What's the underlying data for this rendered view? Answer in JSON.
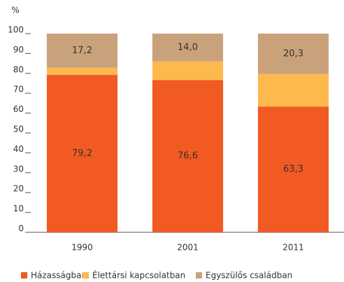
{
  "chart_data": {
    "type": "stacked_bar",
    "y_label": "%",
    "categories": [
      "1990",
      "2001",
      "2011"
    ],
    "series": [
      {
        "name": "Házasságban",
        "color": "#f15a22",
        "values": [
          79.2,
          76.6,
          63.3
        ],
        "value_labels": [
          "79,2",
          "76,6",
          "63,3"
        ]
      },
      {
        "name": "Élettársi kapcsolatban",
        "color": "#fdb94e",
        "values": [
          3.6,
          9.4,
          16.4
        ]
      },
      {
        "name": "Egyszülős családban",
        "color": "#c9a27c",
        "values": [
          17.2,
          14.0,
          20.3
        ],
        "value_labels": [
          "17,2",
          "14,0",
          "20,3"
        ]
      }
    ],
    "ylim": [
      0,
      100
    ],
    "yticks": [
      0,
      10,
      20,
      30,
      40,
      50,
      60,
      70,
      80,
      90,
      100
    ],
    "grid": false,
    "legend": "bottom"
  }
}
